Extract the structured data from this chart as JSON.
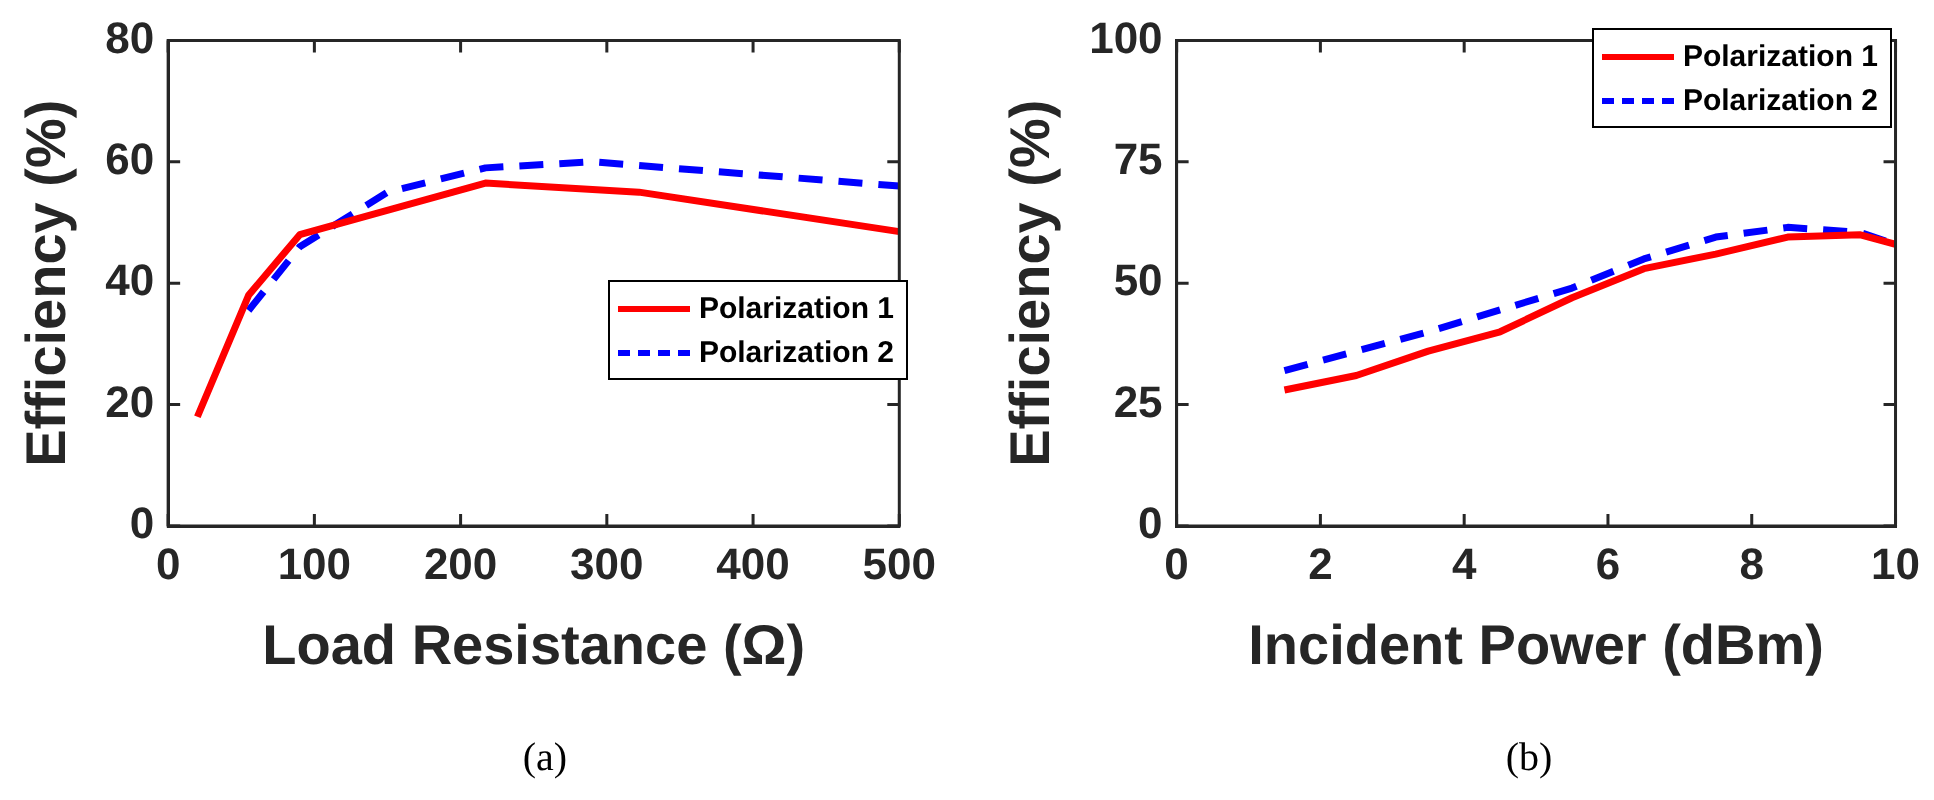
{
  "chart_data": [
    {
      "type": "line",
      "xlabel": "Load Resistance (Ω)",
      "ylabel": "Efficiency (%)",
      "xlim": [
        0,
        500
      ],
      "xticks": [
        0,
        100,
        200,
        300,
        400,
        500
      ],
      "ylim": [
        0,
        80
      ],
      "yticks": [
        0,
        20,
        40,
        60,
        80
      ],
      "legend": "right",
      "grid": false,
      "annotations": [
        "(a)"
      ],
      "series": [
        {
          "name": "Polarization 1",
          "color": "#ff0000",
          "line_style": "solid",
          "x": [
            20,
            55,
            90,
            217,
            322,
            500
          ],
          "values": [
            18,
            38,
            48,
            56.5,
            55,
            48.5
          ]
        },
        {
          "name": "Polarization 2",
          "color": "#0000ff",
          "line_style": "dashed",
          "x": [
            55,
            90,
            150,
            217,
            290,
            500
          ],
          "values": [
            35.5,
            46,
            55,
            59,
            60,
            56
          ]
        }
      ]
    },
    {
      "type": "line",
      "xlabel": "Incident Power (dBm)",
      "ylabel": "Efficiency (%)",
      "xlim": [
        0,
        10
      ],
      "xticks": [
        0,
        2,
        4,
        6,
        8,
        10
      ],
      "ylim": [
        0,
        100
      ],
      "yticks": [
        0,
        25,
        50,
        75,
        100
      ],
      "legend": "top right",
      "grid": false,
      "annotations": [
        "(b)"
      ],
      "series": [
        {
          "name": "Polarization 1",
          "color": "#ff0000",
          "line_style": "solid",
          "x": [
            1.5,
            2.5,
            3.5,
            4.5,
            5.5,
            6.5,
            7.5,
            8.5,
            9.5,
            10
          ],
          "values": [
            28,
            31,
            36,
            40,
            47,
            53,
            56,
            59.5,
            60,
            58
          ]
        },
        {
          "name": "Polarization 2",
          "color": "#0000ff",
          "line_style": "dashed",
          "x": [
            1.5,
            2.5,
            3.5,
            4.5,
            5.5,
            6.5,
            7.5,
            8.5,
            9.5,
            10
          ],
          "values": [
            32,
            36,
            40,
            44.5,
            49,
            55,
            59.5,
            61.5,
            60.5,
            58
          ]
        }
      ]
    }
  ]
}
